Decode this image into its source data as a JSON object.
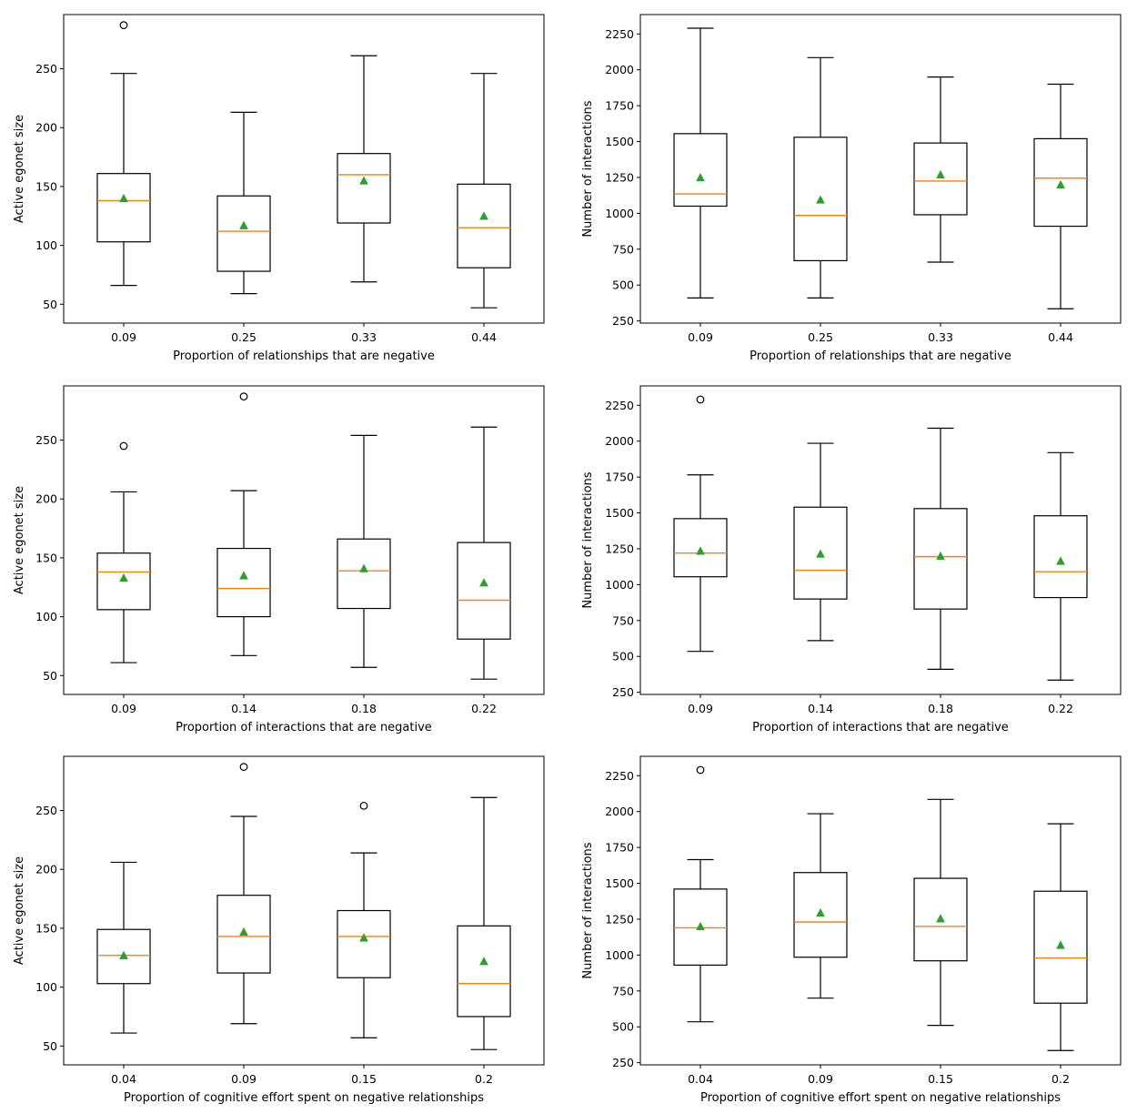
{
  "colors": {
    "box": "#000000",
    "median": "#ff7f0e",
    "mean": "#2ca02c",
    "background": "#ffffff"
  },
  "chart_data": [
    {
      "type": "box",
      "xlabel": "Proportion of relationships that are negative",
      "ylabel": "Active egonet size",
      "categories": [
        "0.09",
        "0.25",
        "0.33",
        "0.44"
      ],
      "ylim": [
        34,
        296
      ],
      "yticks": [
        50,
        100,
        150,
        200,
        250
      ],
      "boxes": [
        {
          "whislo": 66,
          "q1": 103,
          "med": 138,
          "q3": 161,
          "whishi": 246,
          "mean": 140,
          "fliers": [
            287
          ]
        },
        {
          "whislo": 59,
          "q1": 78,
          "med": 112,
          "q3": 142,
          "whishi": 213,
          "mean": 117,
          "fliers": []
        },
        {
          "whislo": 69,
          "q1": 119,
          "med": 160,
          "q3": 178,
          "whishi": 261,
          "mean": 155,
          "fliers": []
        },
        {
          "whislo": 47,
          "q1": 81,
          "med": 115,
          "q3": 152,
          "whishi": 246,
          "mean": 125,
          "fliers": []
        }
      ]
    },
    {
      "type": "box",
      "xlabel": "Proportion of relationships that are negative",
      "ylabel": "Number of interactions",
      "categories": [
        "0.09",
        "0.25",
        "0.33",
        "0.44"
      ],
      "ylim": [
        235,
        2385
      ],
      "yticks": [
        250,
        500,
        750,
        1000,
        1250,
        1500,
        1750,
        2000,
        2250
      ],
      "boxes": [
        {
          "whislo": 410,
          "q1": 1050,
          "med": 1135,
          "q3": 1555,
          "whishi": 2290,
          "mean": 1250,
          "fliers": []
        },
        {
          "whislo": 410,
          "q1": 670,
          "med": 985,
          "q3": 1530,
          "whishi": 2085,
          "mean": 1095,
          "fliers": []
        },
        {
          "whislo": 660,
          "q1": 990,
          "med": 1225,
          "q3": 1490,
          "whishi": 1950,
          "mean": 1270,
          "fliers": []
        },
        {
          "whislo": 335,
          "q1": 910,
          "med": 1245,
          "q3": 1520,
          "whishi": 1900,
          "mean": 1200,
          "fliers": []
        }
      ]
    },
    {
      "type": "box",
      "xlabel": "Proportion of interactions that are negative",
      "ylabel": "Active egonet size",
      "categories": [
        "0.09",
        "0.14",
        "0.18",
        "0.22"
      ],
      "ylim": [
        34,
        296
      ],
      "yticks": [
        50,
        100,
        150,
        200,
        250
      ],
      "boxes": [
        {
          "whislo": 61,
          "q1": 106,
          "med": 138,
          "q3": 154,
          "whishi": 206,
          "mean": 133,
          "fliers": [
            245
          ]
        },
        {
          "whislo": 67,
          "q1": 100,
          "med": 124,
          "q3": 158,
          "whishi": 207,
          "mean": 135,
          "fliers": [
            287
          ]
        },
        {
          "whislo": 57,
          "q1": 107,
          "med": 139,
          "q3": 166,
          "whishi": 254,
          "mean": 141,
          "fliers": []
        },
        {
          "whislo": 47,
          "q1": 81,
          "med": 114,
          "q3": 163,
          "whishi": 261,
          "mean": 129,
          "fliers": []
        }
      ]
    },
    {
      "type": "box",
      "xlabel": "Proportion of interactions that are negative",
      "ylabel": "Number of interactions",
      "categories": [
        "0.09",
        "0.14",
        "0.18",
        "0.22"
      ],
      "ylim": [
        235,
        2385
      ],
      "yticks": [
        250,
        500,
        750,
        1000,
        1250,
        1500,
        1750,
        2000,
        2250
      ],
      "boxes": [
        {
          "whislo": 535,
          "q1": 1055,
          "med": 1220,
          "q3": 1460,
          "whishi": 1765,
          "mean": 1235,
          "fliers": [
            2290
          ]
        },
        {
          "whislo": 610,
          "q1": 900,
          "med": 1100,
          "q3": 1540,
          "whishi": 1985,
          "mean": 1215,
          "fliers": []
        },
        {
          "whislo": 410,
          "q1": 830,
          "med": 1195,
          "q3": 1530,
          "whishi": 2090,
          "mean": 1200,
          "fliers": []
        },
        {
          "whislo": 335,
          "q1": 910,
          "med": 1090,
          "q3": 1480,
          "whishi": 1920,
          "mean": 1165,
          "fliers": []
        }
      ]
    },
    {
      "type": "box",
      "xlabel": "Proportion of cognitive effort spent on negative relationships",
      "ylabel": "Active egonet size",
      "categories": [
        "0.04",
        "0.09",
        "0.15",
        "0.2"
      ],
      "ylim": [
        34,
        296
      ],
      "yticks": [
        50,
        100,
        150,
        200,
        250
      ],
      "boxes": [
        {
          "whislo": 61,
          "q1": 103,
          "med": 127,
          "q3": 149,
          "whishi": 206,
          "mean": 127,
          "fliers": []
        },
        {
          "whislo": 69,
          "q1": 112,
          "med": 143,
          "q3": 178,
          "whishi": 245,
          "mean": 147,
          "fliers": [
            287
          ]
        },
        {
          "whislo": 57,
          "q1": 108,
          "med": 143,
          "q3": 165,
          "whishi": 214,
          "mean": 142,
          "fliers": [
            254
          ]
        },
        {
          "whislo": 47,
          "q1": 75,
          "med": 103,
          "q3": 152,
          "whishi": 261,
          "mean": 122,
          "fliers": []
        }
      ]
    },
    {
      "type": "box",
      "xlabel": "Proportion of cognitive effort spent on negative relationships",
      "ylabel": "Number of interactions",
      "categories": [
        "0.04",
        "0.09",
        "0.15",
        "0.2"
      ],
      "ylim": [
        235,
        2385
      ],
      "yticks": [
        250,
        500,
        750,
        1000,
        1250,
        1500,
        1750,
        2000,
        2250
      ],
      "boxes": [
        {
          "whislo": 535,
          "q1": 930,
          "med": 1190,
          "q3": 1460,
          "whishi": 1665,
          "mean": 1200,
          "fliers": [
            2290
          ]
        },
        {
          "whislo": 700,
          "q1": 985,
          "med": 1230,
          "q3": 1575,
          "whishi": 1985,
          "mean": 1295,
          "fliers": []
        },
        {
          "whislo": 510,
          "q1": 960,
          "med": 1200,
          "q3": 1535,
          "whishi": 2085,
          "mean": 1255,
          "fliers": []
        },
        {
          "whislo": 335,
          "q1": 665,
          "med": 980,
          "q3": 1445,
          "whishi": 1915,
          "mean": 1070,
          "fliers": []
        }
      ]
    }
  ]
}
